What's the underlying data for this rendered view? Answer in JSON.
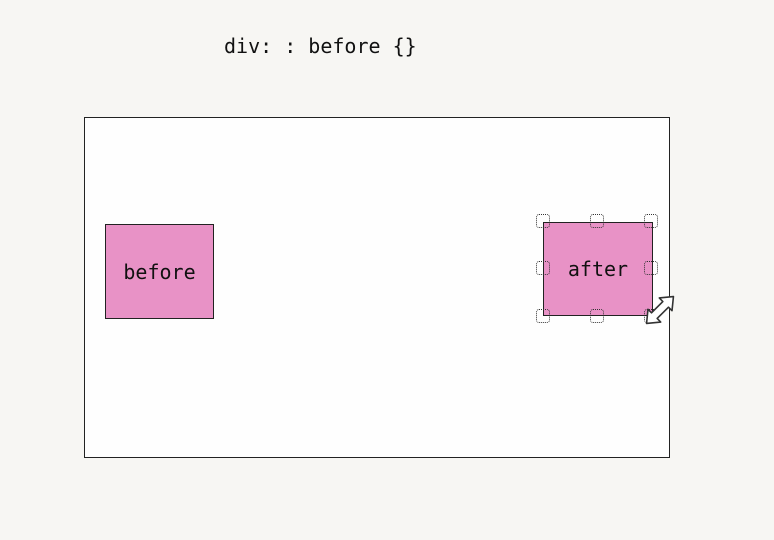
{
  "code_label": "div: : before {}",
  "before_box": {
    "label": "before",
    "fill": "#e892c6"
  },
  "after_box": {
    "label": "after",
    "fill": "#e892c6",
    "selected": true
  },
  "cursor": "resize-diagonal-cursor-icon",
  "colors": {
    "background": "#f7f6f3",
    "container": "#fefefe",
    "pseudo_fill": "#e892c6",
    "border": "#222222"
  }
}
